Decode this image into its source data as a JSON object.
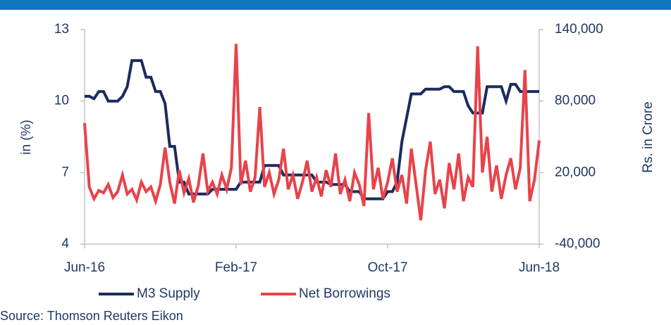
{
  "chart_data": {
    "type": "line",
    "categories": [
      "Jun-16",
      null,
      null,
      null,
      null,
      null,
      null,
      null,
      null,
      null,
      null,
      null,
      null,
      null,
      null,
      null,
      null,
      null,
      null,
      null,
      null,
      null,
      null,
      null,
      null,
      null,
      null,
      null,
      null,
      null,
      null,
      null,
      "Feb-17",
      null,
      null,
      null,
      null,
      null,
      null,
      null,
      null,
      null,
      null,
      null,
      null,
      null,
      null,
      null,
      null,
      null,
      null,
      null,
      null,
      null,
      null,
      null,
      null,
      null,
      null,
      null,
      null,
      null,
      null,
      null,
      "Oct-17",
      null,
      null,
      null,
      null,
      null,
      null,
      null,
      null,
      null,
      null,
      null,
      null,
      null,
      null,
      null,
      null,
      null,
      null,
      null,
      null,
      null,
      null,
      null,
      null,
      null,
      null,
      null,
      null,
      null,
      null,
      null,
      "Jun-18"
    ],
    "series": [
      {
        "name": "M3 Supply",
        "color": "#1a2b5f",
        "values": [
          10.2,
          10.2,
          10.1,
          10.4,
          10.4,
          10.0,
          10.0,
          10.0,
          10.2,
          10.6,
          11.7,
          11.7,
          11.7,
          11.0,
          11.0,
          10.4,
          10.4,
          9.9,
          8.1,
          8.1,
          6.6,
          6.6,
          6.1,
          6.1,
          6.1,
          6.1,
          6.1,
          6.3,
          6.3,
          6.3,
          6.3,
          6.3,
          6.3,
          6.6,
          6.6,
          6.6,
          6.6,
          6.6,
          7.3,
          7.3,
          7.3,
          7.3,
          6.9,
          6.9,
          6.9,
          6.9,
          6.9,
          6.9,
          6.9,
          6.6,
          6.6,
          6.6,
          6.5,
          6.5,
          6.5,
          6.5,
          6.2,
          6.2,
          6.2,
          5.9,
          5.9,
          5.9,
          5.9,
          5.9,
          6.2,
          6.2,
          6.6,
          8.3,
          9.3,
          10.3,
          10.3,
          10.3,
          10.5,
          10.5,
          10.5,
          10.5,
          10.6,
          10.6,
          10.4,
          10.4,
          10.4,
          9.8,
          9.5,
          9.5,
          9.5,
          10.6,
          10.6,
          10.6,
          10.6,
          10.0,
          10.7,
          10.7,
          10.4,
          10.4,
          10.4,
          10.4,
          10.4
        ]
      },
      {
        "name": "Net Borrowings",
        "color": "#e8434a",
        "axis": "y2",
        "values": [
          61500,
          8000,
          -2000,
          5000,
          3000,
          10000,
          -1000,
          4000,
          18000,
          2000,
          6000,
          -3000,
          12000,
          4000,
          8000,
          -4000,
          10000,
          41000,
          12000,
          -6000,
          22000,
          3000,
          15000,
          -5000,
          9000,
          36000,
          4000,
          12000,
          2000,
          18000,
          6000,
          24000,
          128000,
          10000,
          30000,
          4000,
          16000,
          75000,
          8000,
          20000,
          2000,
          14000,
          40000,
          6000,
          18000,
          -2000,
          12000,
          30000,
          4000,
          16000,
          0,
          22000,
          8000,
          36000,
          2000,
          14000,
          -4000,
          20000,
          10000,
          -8000,
          70000,
          6000,
          24000,
          -2000,
          12000,
          32000,
          4000,
          18000,
          -6000,
          40000,
          10000,
          -20000,
          22000,
          46000,
          2000,
          14000,
          -10000,
          28000,
          6000,
          36000,
          -4000,
          16000,
          8000,
          126000,
          20000,
          50000,
          4000,
          26000,
          -2000,
          18000,
          32000,
          6000,
          24000,
          106000,
          -4000,
          14000,
          47000
        ]
      }
    ],
    "ylabel": "in (%)",
    "y2label": "Rs. in Crore",
    "ylim": [
      4,
      13
    ],
    "yticks": [
      4,
      7,
      10,
      13
    ],
    "y2lim": [
      -40000,
      140000
    ],
    "y2ticks": [
      {
        "value": -40000,
        "label": "-40,000"
      },
      {
        "value": 20000,
        "label": "20,000"
      },
      {
        "value": 80000,
        "label": "80,000"
      },
      {
        "value": 140000,
        "label": "140,000"
      }
    ],
    "legend": "bottom",
    "source": "Source: Thomson Reuters Eikon"
  }
}
